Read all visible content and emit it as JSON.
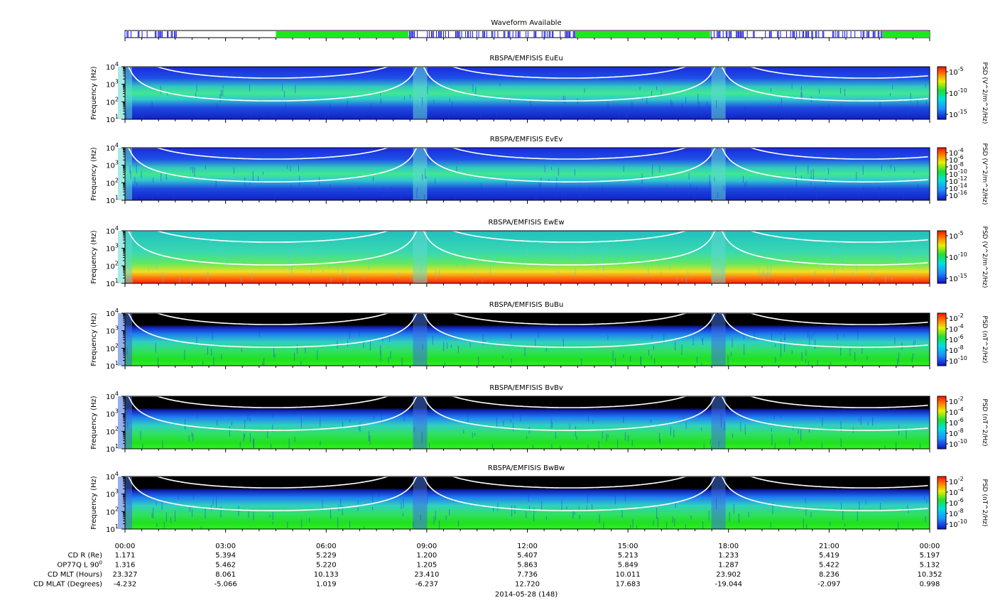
{
  "waveform_title": "Waveform Available",
  "waveform_segments": [
    {
      "type": "burst",
      "start": 0.0,
      "end": 1.6
    },
    {
      "type": "continuous",
      "start": 4.5,
      "end": 8.45
    },
    {
      "type": "burst",
      "start": 8.45,
      "end": 13.45
    },
    {
      "type": "continuous",
      "start": 13.45,
      "end": 17.45
    },
    {
      "type": "burst",
      "start": 17.45,
      "end": 22.6
    },
    {
      "type": "continuous",
      "start": 22.6,
      "end": 24.0
    }
  ],
  "colors": {
    "burst": "#1414d8",
    "continuous": "#1ee61e"
  },
  "chart_data": [
    {
      "type": "heatmap",
      "title": "RBSPA/EMFISIS  EuEu",
      "ylabel": "Frequency (Hz)",
      "yscale": "log",
      "ylim": [
        10,
        10000
      ],
      "yticks": [
        {
          "b": "10",
          "e": "1"
        },
        {
          "b": "10",
          "e": "2"
        },
        {
          "b": "10",
          "e": "3"
        },
        {
          "b": "10",
          "e": "4"
        }
      ],
      "colorbar_label": "PSD (V^2/m^2/Hz)",
      "colorbar_ticks": [
        {
          "b": "10",
          "e": "-5"
        },
        {
          "b": "10",
          "e": "-10"
        },
        {
          "b": "10",
          "e": "-15"
        }
      ],
      "style": "e"
    },
    {
      "type": "heatmap",
      "title": "RBSPA/EMFISIS  EvEv",
      "ylabel": "Frequency (Hz)",
      "yscale": "log",
      "ylim": [
        10,
        10000
      ],
      "yticks": [
        {
          "b": "10",
          "e": "1"
        },
        {
          "b": "10",
          "e": "2"
        },
        {
          "b": "10",
          "e": "3"
        },
        {
          "b": "10",
          "e": "4"
        }
      ],
      "colorbar_label": "PSD (V^2/m^2/Hz)",
      "colorbar_ticks": [
        {
          "b": "10",
          "e": "-4"
        },
        {
          "b": "10",
          "e": "-6"
        },
        {
          "b": "10",
          "e": "-8"
        },
        {
          "b": "10",
          "e": "-10"
        },
        {
          "b": "10",
          "e": "-12"
        },
        {
          "b": "10",
          "e": "-14"
        },
        {
          "b": "10",
          "e": "-16"
        }
      ],
      "style": "e"
    },
    {
      "type": "heatmap",
      "title": "RBSPA/EMFISIS  EwEw",
      "ylabel": "Frequency (Hz)",
      "yscale": "log",
      "ylim": [
        10,
        10000
      ],
      "yticks": [
        {
          "b": "10",
          "e": "1"
        },
        {
          "b": "10",
          "e": "2"
        },
        {
          "b": "10",
          "e": "3"
        },
        {
          "b": "10",
          "e": "4"
        }
      ],
      "colorbar_label": "PSD (V^2/m^2/Hz)",
      "colorbar_ticks": [
        {
          "b": "10",
          "e": "-5"
        },
        {
          "b": "10",
          "e": "-10"
        },
        {
          "b": "10",
          "e": "-15"
        }
      ],
      "style": "ew"
    },
    {
      "type": "heatmap",
      "title": "RBSPA/EMFISIS  BuBu",
      "ylabel": "Frequency (Hz)",
      "yscale": "log",
      "ylim": [
        10,
        10000
      ],
      "yticks": [
        {
          "b": "10",
          "e": "1"
        },
        {
          "b": "10",
          "e": "2"
        },
        {
          "b": "10",
          "e": "3"
        },
        {
          "b": "10",
          "e": "4"
        }
      ],
      "colorbar_label": "PSD (nT^2/Hz)",
      "colorbar_ticks": [
        {
          "b": "10",
          "e": "-2"
        },
        {
          "b": "10",
          "e": "-4"
        },
        {
          "b": "10",
          "e": "-6"
        },
        {
          "b": "10",
          "e": "-8"
        },
        {
          "b": "10",
          "e": "-10"
        }
      ],
      "style": "b"
    },
    {
      "type": "heatmap",
      "title": "RBSPA/EMFISIS  BvBv",
      "ylabel": "Frequency (Hz)",
      "yscale": "log",
      "ylim": [
        10,
        10000
      ],
      "yticks": [
        {
          "b": "10",
          "e": "1"
        },
        {
          "b": "10",
          "e": "2"
        },
        {
          "b": "10",
          "e": "3"
        },
        {
          "b": "10",
          "e": "4"
        }
      ],
      "colorbar_label": "PSD (nT^2/Hz)",
      "colorbar_ticks": [
        {
          "b": "10",
          "e": "-2"
        },
        {
          "b": "10",
          "e": "-4"
        },
        {
          "b": "10",
          "e": "-6"
        },
        {
          "b": "10",
          "e": "-8"
        },
        {
          "b": "10",
          "e": "-10"
        }
      ],
      "style": "b"
    },
    {
      "type": "heatmap",
      "title": "RBSPA/EMFISIS  BwBw",
      "ylabel": "Frequency (Hz)",
      "yscale": "log",
      "ylim": [
        10,
        10000
      ],
      "yticks": [
        {
          "b": "10",
          "e": "1"
        },
        {
          "b": "10",
          "e": "2"
        },
        {
          "b": "10",
          "e": "3"
        },
        {
          "b": "10",
          "e": "4"
        }
      ],
      "colorbar_label": "PSD (nT^2/Hz)",
      "colorbar_ticks": [
        {
          "b": "10",
          "e": "-2"
        },
        {
          "b": "10",
          "e": "-4"
        },
        {
          "b": "10",
          "e": "-6"
        },
        {
          "b": "10",
          "e": "-8"
        },
        {
          "b": "10",
          "e": "-10"
        }
      ],
      "style": "b"
    }
  ],
  "time_axis": {
    "xlim_hours": [
      0,
      24
    ],
    "ticks": [
      {
        "hour": 0,
        "label": "00:00"
      },
      {
        "hour": 3,
        "label": "03:00"
      },
      {
        "hour": 6,
        "label": "06:00"
      },
      {
        "hour": 9,
        "label": "09:00"
      },
      {
        "hour": 12,
        "label": "12:00"
      },
      {
        "hour": 15,
        "label": "15:00"
      },
      {
        "hour": 18,
        "label": "18:00"
      },
      {
        "hour": 21,
        "label": "21:00"
      },
      {
        "hour": 24,
        "label": "00:00"
      }
    ],
    "date_label": "2014-05-28 (148)"
  },
  "ephemeris": [
    {
      "label": "CD R (Re)",
      "values": [
        "1.171",
        "5.394",
        "5.229",
        "1.200",
        "5.407",
        "5.213",
        "1.233",
        "5.419",
        "5.197"
      ]
    },
    {
      "label": "OP77Q L 90",
      "label_sup": "0",
      "values": [
        "1.316",
        "5.462",
        "5.220",
        "1.205",
        "5.863",
        "5.849",
        "1.287",
        "5.422",
        "5.132"
      ]
    },
    {
      "label": "CD MLT (Hours)",
      "values": [
        "23.327",
        "8.061",
        "10.133",
        "23.410",
        "7.736",
        "10.011",
        "23.902",
        "8.236",
        "10.352"
      ]
    },
    {
      "label": "CD MLAT (Degrees)",
      "values": [
        "-4.232",
        "-5.066",
        "1.019",
        "-6.237",
        "12.720",
        "17.683",
        "-19.044",
        "-2.097",
        "0.998"
      ]
    }
  ]
}
